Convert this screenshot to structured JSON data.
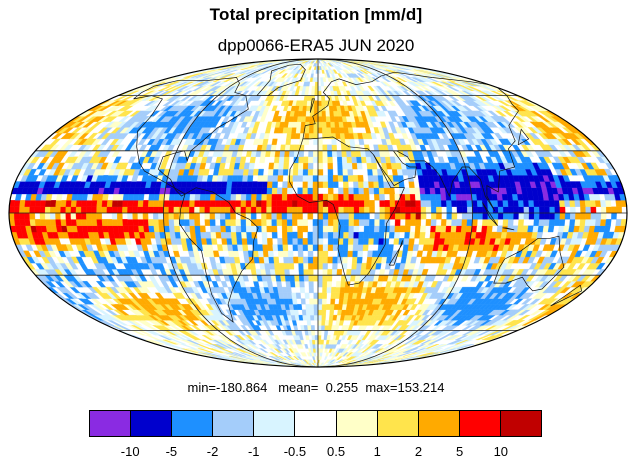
{
  "title": "Total precipitation [mm/d]",
  "subtitle": "dpp0066-ERA5 JUN 2020",
  "stats": {
    "min_label": "min=",
    "min_value": "-180.864",
    "mean_label": "mean=",
    "mean_value": "0.255",
    "max_label": "max=",
    "max_value": "153.214"
  },
  "projection": "mollweide",
  "colorbar": {
    "colors": [
      "#8a2be2",
      "#0000cd",
      "#1e90ff",
      "#a4cdfa",
      "#d8f4ff",
      "#ffffff",
      "#ffffc8",
      "#ffe44c",
      "#ffaa00",
      "#ff0000",
      "#c00000"
    ],
    "labels": [
      "-10",
      "-5",
      "-2",
      "-1",
      "-0.5",
      "0.5",
      "1",
      "2",
      "5",
      "10"
    ]
  }
}
